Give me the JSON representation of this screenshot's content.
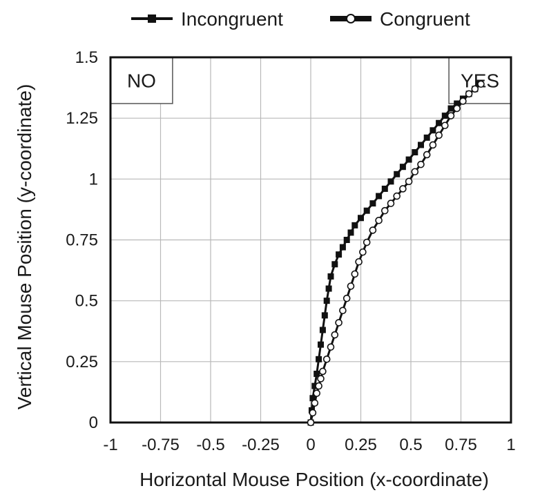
{
  "chart_data": {
    "type": "line",
    "title": "",
    "xlabel": "Horizontal Mouse Position (x-coordinate)",
    "ylabel": "Vertical Mouse Position (y-coordinate)",
    "xlim": [
      -1,
      1
    ],
    "ylim": [
      0,
      1.5
    ],
    "x_ticks": [
      "-1",
      "-0.75",
      "-0.5",
      "-0.25",
      "0",
      "0.25",
      "0.5",
      "0.75",
      "1"
    ],
    "y_ticks": [
      "0",
      "0.25",
      "0.5",
      "0.75",
      "1",
      "1.25",
      "1.5"
    ],
    "grid": true,
    "legend_position": "top",
    "response_boxes": [
      {
        "label": "NO",
        "x_range": [
          -1,
          -0.69
        ],
        "y_range": [
          1.31,
          1.5
        ]
      },
      {
        "label": "YES",
        "x_range": [
          0.69,
          1
        ],
        "y_range": [
          1.31,
          1.5
        ]
      }
    ],
    "series": [
      {
        "name": "Incongruent",
        "marker": "square",
        "color": "#111111",
        "x": [
          0,
          0.005,
          0.01,
          0.02,
          0.03,
          0.04,
          0.05,
          0.06,
          0.07,
          0.08,
          0.09,
          0.1,
          0.12,
          0.14,
          0.16,
          0.18,
          0.2,
          0.22,
          0.25,
          0.28,
          0.31,
          0.34,
          0.37,
          0.4,
          0.43,
          0.46,
          0.49,
          0.52,
          0.55,
          0.58,
          0.61,
          0.64,
          0.67,
          0.7,
          0.73,
          0.76,
          0.79,
          0.82,
          0.84
        ],
        "y": [
          0,
          0.05,
          0.1,
          0.15,
          0.2,
          0.26,
          0.32,
          0.38,
          0.44,
          0.5,
          0.55,
          0.6,
          0.65,
          0.69,
          0.72,
          0.75,
          0.78,
          0.81,
          0.84,
          0.87,
          0.9,
          0.93,
          0.96,
          0.99,
          1.02,
          1.05,
          1.08,
          1.11,
          1.14,
          1.17,
          1.2,
          1.23,
          1.26,
          1.29,
          1.31,
          1.33,
          1.35,
          1.37,
          1.39
        ]
      },
      {
        "name": "Congruent",
        "marker": "circle",
        "color": "#111111",
        "x": [
          0,
          0.01,
          0.02,
          0.03,
          0.04,
          0.05,
          0.06,
          0.08,
          0.1,
          0.12,
          0.14,
          0.16,
          0.18,
          0.2,
          0.22,
          0.24,
          0.26,
          0.28,
          0.31,
          0.34,
          0.37,
          0.4,
          0.43,
          0.46,
          0.49,
          0.52,
          0.55,
          0.58,
          0.61,
          0.64,
          0.67,
          0.7,
          0.73,
          0.76,
          0.79,
          0.82,
          0.85
        ],
        "y": [
          0,
          0.04,
          0.08,
          0.12,
          0.15,
          0.18,
          0.21,
          0.26,
          0.31,
          0.36,
          0.41,
          0.46,
          0.51,
          0.56,
          0.61,
          0.66,
          0.7,
          0.74,
          0.79,
          0.83,
          0.87,
          0.9,
          0.93,
          0.96,
          0.99,
          1.03,
          1.06,
          1.1,
          1.14,
          1.18,
          1.22,
          1.26,
          1.29,
          1.32,
          1.35,
          1.37,
          1.39
        ]
      }
    ]
  }
}
